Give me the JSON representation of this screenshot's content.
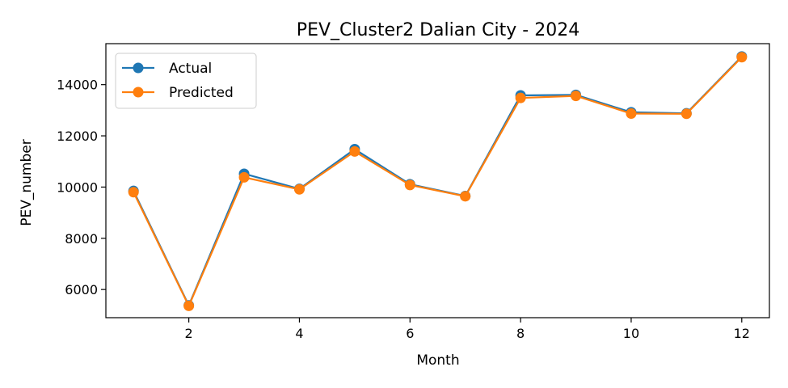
{
  "chart_data": {
    "type": "line",
    "title": "PEV_Cluster2 Dalian City - 2024",
    "xlabel": "Month",
    "ylabel": "PEV_number",
    "x": [
      1,
      2,
      3,
      4,
      5,
      6,
      7,
      8,
      9,
      10,
      11,
      12
    ],
    "xlim": [
      0.5,
      12.5
    ],
    "ylim": [
      4900,
      15600
    ],
    "xticks": [
      2,
      4,
      6,
      8,
      10,
      12
    ],
    "yticks": [
      6000,
      8000,
      10000,
      12000,
      14000
    ],
    "grid": false,
    "legend_position": "top-left",
    "series": [
      {
        "name": "Actual",
        "color": "#1f77b4",
        "values": [
          9850,
          5380,
          10520,
          9930,
          11480,
          10110,
          9650,
          13580,
          13600,
          12920,
          12880,
          15100
        ]
      },
      {
        "name": "Predicted",
        "color": "#ff7f0e",
        "values": [
          9800,
          5360,
          10380,
          9910,
          11390,
          10080,
          9640,
          13480,
          13560,
          12870,
          12860,
          15070
        ]
      }
    ]
  }
}
